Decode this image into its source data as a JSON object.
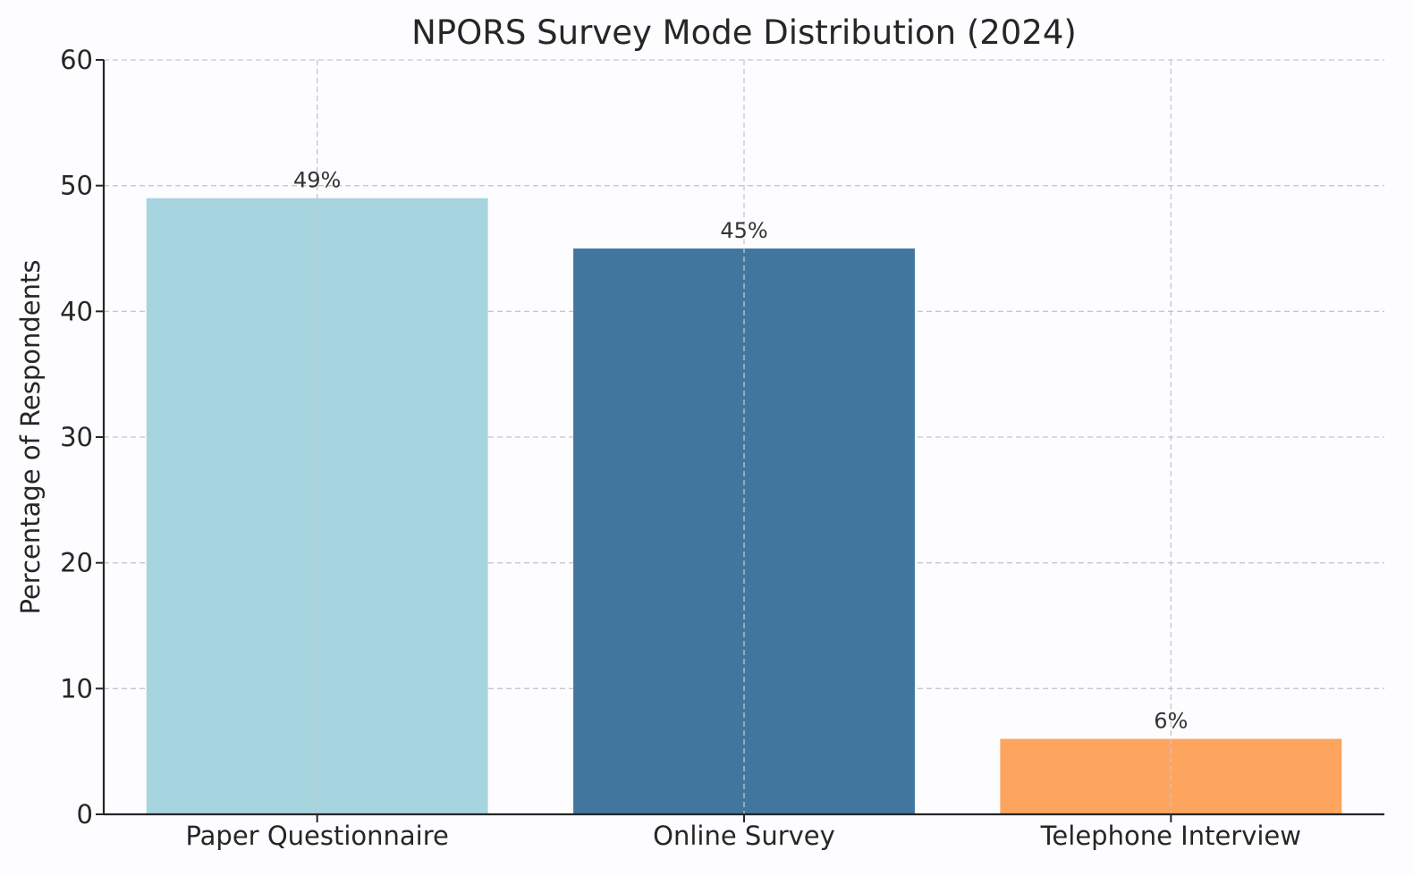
{
  "chart_data": {
    "type": "bar",
    "title": "NPORS Survey Mode Distribution (2024)",
    "xlabel": "",
    "ylabel": "Percentage of Respondents",
    "categories": [
      "Paper Questionnaire",
      "Online Survey",
      "Telephone Interview"
    ],
    "values": [
      49,
      45,
      6
    ],
    "data_labels": [
      "49%",
      "45%",
      "6%"
    ],
    "colors": [
      "#a6d4df",
      "#41779f",
      "#fda45f"
    ],
    "ylim": [
      0,
      60
    ],
    "yticks": [
      0,
      10,
      20,
      30,
      40,
      50,
      60
    ],
    "ytick_labels": [
      "0",
      "10",
      "20",
      "30",
      "40",
      "50",
      "60"
    ],
    "grid": true,
    "legend": "none"
  }
}
